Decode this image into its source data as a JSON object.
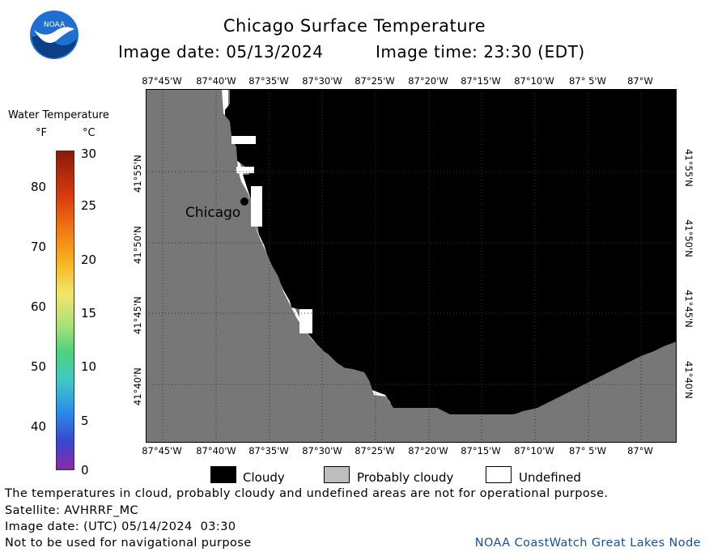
{
  "header": {
    "title": "Chicago Surface Temperature",
    "image_date": "Image date: 05/13/2024",
    "image_time": "Image time: 23:30 (EDT)",
    "logo_text": "NOAA"
  },
  "legend": {
    "title": "Water Temperature",
    "unit_f": "°F",
    "unit_c": "°C",
    "f_ticks": [
      "80",
      "70",
      "60",
      "50",
      "40"
    ],
    "c_ticks": [
      "30",
      "25",
      "20",
      "15",
      "10",
      "5",
      "0"
    ]
  },
  "map": {
    "lon_labels": [
      "87°45'W",
      "87°40'W",
      "87°35'W",
      "87°30'W",
      "87°25'W",
      "87°20'W",
      "87°15'W",
      "87°10'W",
      "87° 5'W",
      "87°W"
    ],
    "lat_labels": [
      "41°55'N",
      "41°50'N",
      "41°45'N",
      "41°40'N"
    ],
    "city_label": "Chicago",
    "colors": {
      "land": "#777777",
      "cloudy": "#000000",
      "probably_cloudy": "#bdbdbd",
      "undefined": "#ffffff"
    }
  },
  "key": {
    "cloudy": "Cloudy",
    "probably_cloudy": "Probably cloudy",
    "undefined": "Undefined"
  },
  "footer": {
    "disclaimer": "The temperatures in cloud, probably cloudy and undefined areas are not for operational purpose.",
    "satellite": "Satellite: AVHRRF_MC",
    "utc_date": "Image date: (UTC) 05/14/2024  03:30",
    "navigation": "Not to be used for navigational purpose",
    "credit": "NOAA CoastWatch Great Lakes Node"
  }
}
